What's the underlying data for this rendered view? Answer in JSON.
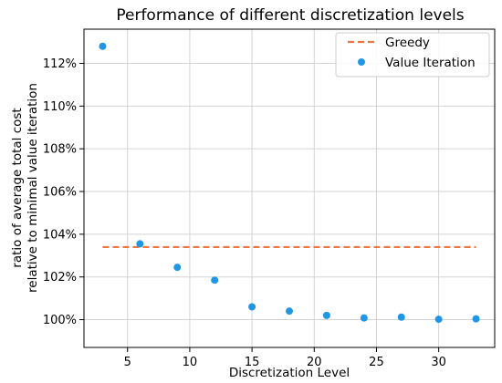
{
  "chart_data": {
    "type": "scatter",
    "title": "Performance of different discretization levels",
    "xlabel": "Discretization Level",
    "ylabel_lines": [
      "ratio of average total cost",
      "relative to minimal value iteration"
    ],
    "xlim": [
      1.5,
      34.5
    ],
    "ylim": [
      98.7,
      113.6
    ],
    "xticks": [
      5,
      10,
      15,
      20,
      25,
      30
    ],
    "yticks": [
      100,
      102,
      104,
      106,
      108,
      110,
      112
    ],
    "ytick_labels": [
      "100%",
      "102%",
      "104%",
      "106%",
      "108%",
      "110%",
      "112%"
    ],
    "grid": true,
    "legend": "top-right",
    "series": [
      {
        "name": "Greedy",
        "kind": "line",
        "style": "dashed",
        "color": "#f0743e",
        "x": [
          3,
          33
        ],
        "y": [
          103.4,
          103.4
        ]
      },
      {
        "name": "Value Iteration",
        "kind": "scatter",
        "color": "#1f97e6",
        "x": [
          3,
          6,
          9,
          12,
          15,
          18,
          21,
          24,
          27,
          30,
          33
        ],
        "y": [
          112.8,
          103.55,
          102.45,
          101.85,
          100.6,
          100.4,
          100.2,
          100.08,
          100.12,
          100.02,
          100.04
        ]
      }
    ]
  }
}
